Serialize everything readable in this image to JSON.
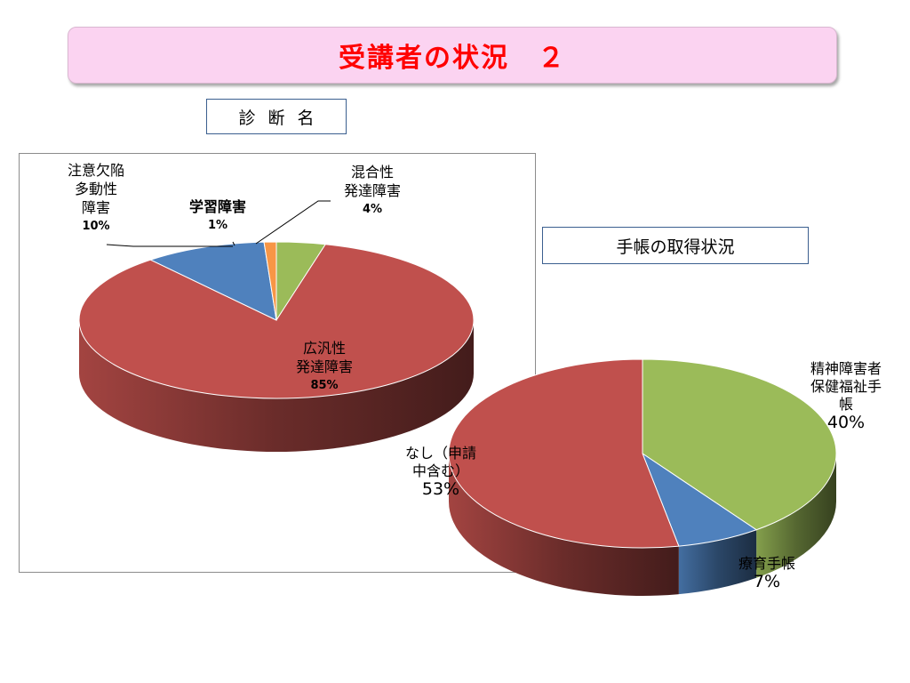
{
  "slide": {
    "title": "受講者の状況　２",
    "diagnosis_label": "診断名",
    "notebook_label": "手帳の取得状況"
  },
  "chart_data": [
    {
      "type": "pie",
      "title": "診断名",
      "slices": [
        {
          "label": "広汎性発達障害",
          "value": 85,
          "display": "85%",
          "color": "#c0504d"
        },
        {
          "label": "注意欠陥多動性障害",
          "value": 10,
          "display": "10%",
          "color": "#4f81bd"
        },
        {
          "label": "学習障害",
          "value": 1,
          "display": "1%",
          "color": "#f79646"
        },
        {
          "label": "混合性発達障害",
          "value": 4,
          "display": "4%",
          "color": "#9bbb59"
        }
      ]
    },
    {
      "type": "pie",
      "title": "手帳の取得状況",
      "slices": [
        {
          "label": "精神障害者保健福祉手帳",
          "value": 40,
          "display": "40%",
          "color": "#9bbb59"
        },
        {
          "label": "療育手帳",
          "value": 7,
          "display": "7%",
          "color": "#4f81bd"
        },
        {
          "label": "なし（申請中含む）",
          "value": 53,
          "display": "53%",
          "color": "#c0504d"
        }
      ]
    }
  ],
  "labels": {
    "pie1": {
      "pdd_line1": "広汎性",
      "pdd_line2": "発達障害",
      "pdd_pct": "85%",
      "adhd_line1": "注意欠陥",
      "adhd_line2": "多動性",
      "adhd_line3": "障害",
      "adhd_pct": "10%",
      "ld_line1": "学習障害",
      "ld_pct": "1%",
      "mixed_line1": "混合性",
      "mixed_line2": "発達障害",
      "mixed_pct": "4%"
    },
    "pie2": {
      "mental_line1": "精神障害者",
      "mental_line2": "保健福祉手",
      "mental_line3": "帳",
      "mental_pct": "40%",
      "ryoiku_line1": "療育手帳",
      "ryoiku_pct": "7%",
      "none_line1": "なし（申請",
      "none_line2": "中含む）",
      "none_pct": "53%"
    }
  }
}
